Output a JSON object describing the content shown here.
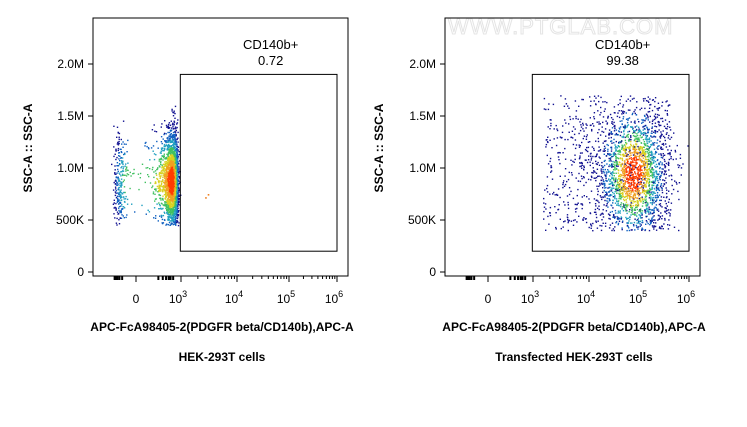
{
  "watermark": "WWW.PTGLAB.COM",
  "chart_data": [
    {
      "type": "scatter",
      "xlabel": "APC-FcA98405-2(PDGFR beta/CD140b),APC-A",
      "ylabel": "SSC-A :: SSC-A",
      "subtitle": "HEK-293T cells",
      "x_scale": "biexponential",
      "x_ticks": [
        {
          "value": 0,
          "base": "0",
          "exp": ""
        },
        {
          "value": 1000,
          "base": "10",
          "exp": "3"
        },
        {
          "value": 10000,
          "base": "10",
          "exp": "4"
        },
        {
          "value": 100000,
          "base": "10",
          "exp": "5"
        },
        {
          "value": 1000000,
          "base": "10",
          "exp": "6"
        }
      ],
      "y_ticks": [
        {
          "value": 0,
          "label": "0"
        },
        {
          "value": 500000,
          "label": "500K"
        },
        {
          "value": 1000000,
          "label": "1.0M"
        },
        {
          "value": 1500000,
          "label": "1.5M"
        },
        {
          "value": 2000000,
          "label": "2.0M"
        }
      ],
      "ylim": [
        0,
        2400000
      ],
      "gate": {
        "name": "CD140b+",
        "percent": "0.72",
        "x_range": [
          900,
          1000000
        ],
        "y_range": [
          200000,
          1900000
        ]
      },
      "population": {
        "x_center": 220,
        "x_spread": 180,
        "y_center": 880000,
        "y_spread": 230000,
        "y_range": [
          450000,
          1600000
        ],
        "outliers": [
          [
            3000,
            750000
          ],
          [
            2700,
            720000
          ]
        ]
      }
    },
    {
      "type": "scatter",
      "xlabel": "APC-FcA98405-2(PDGFR beta/CD140b),APC-A",
      "ylabel": "SSC-A :: SSC-A",
      "subtitle": "Transfected HEK-293T cells",
      "x_scale": "biexponential",
      "x_ticks": [
        {
          "value": 0,
          "base": "0",
          "exp": ""
        },
        {
          "value": 1000,
          "base": "10",
          "exp": "3"
        },
        {
          "value": 10000,
          "base": "10",
          "exp": "4"
        },
        {
          "value": 100000,
          "base": "10",
          "exp": "5"
        },
        {
          "value": 1000000,
          "base": "10",
          "exp": "6"
        }
      ],
      "y_ticks": [
        {
          "value": 0,
          "label": "0"
        },
        {
          "value": 500000,
          "label": "500K"
        },
        {
          "value": 1000000,
          "label": "1.0M"
        },
        {
          "value": 1500000,
          "label": "1.5M"
        },
        {
          "value": 2000000,
          "label": "2.0M"
        }
      ],
      "ylim": [
        0,
        2400000
      ],
      "gate": {
        "name": "CD140b+",
        "percent": "99.38",
        "x_range": [
          900,
          1000000
        ],
        "y_range": [
          200000,
          1900000
        ]
      },
      "population": {
        "x_center": 70000,
        "x_spread_log": 0.35,
        "y_center": 950000,
        "y_spread": 280000,
        "y_range": [
          400000,
          1700000
        ],
        "broad_x_range": [
          1500,
          400000
        ]
      }
    }
  ]
}
